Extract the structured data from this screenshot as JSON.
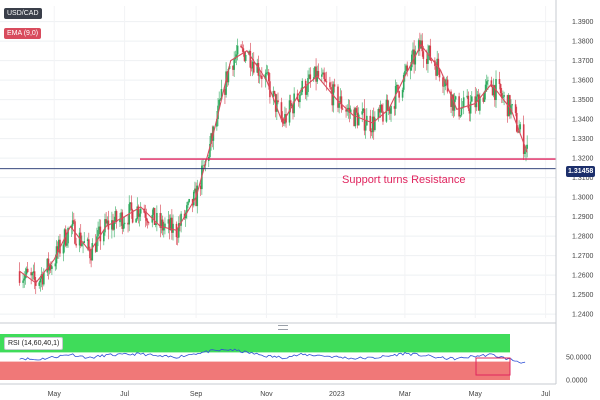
{
  "legend": {
    "symbol": "USD/CAD",
    "ema_label": "EMA (9,0)",
    "rsi_label": "RSI (14,60,40,1)"
  },
  "annotation": "Support turns Resistance",
  "colors": {
    "up": "#2eaa5e",
    "down": "#d63b4a",
    "ema": "#d84b5d",
    "support_line": "#e0245e",
    "price_line": "#1c2f6b",
    "rsi_line": "#2d4fd6",
    "rsi_top_zone": "#3fdc5a",
    "rsi_bottom_zone": "#f07878"
  },
  "chart_data": [
    {
      "type": "candlestick",
      "title": "USD/CAD",
      "y_ticks": [
        "1.3900",
        "1.3800",
        "1.3700",
        "1.3600",
        "1.3500",
        "1.3400",
        "1.3300",
        "1.3200",
        "1.3100",
        "1.3000",
        "1.2900",
        "1.2800",
        "1.2700",
        "1.2600",
        "1.2500",
        "1.2400"
      ],
      "x_ticks": [
        "May",
        "Jul",
        "Sep",
        "Nov",
        "2023",
        "Mar",
        "May",
        "Jul"
      ],
      "ylim": [
        1.238,
        1.398
      ],
      "current_price": "1.31458",
      "horizontal_level": 1.3195,
      "annotation": "Support turns Resistance",
      "series": [
        {
          "name": "EMA (9,0)",
          "points": [
            [
              "2022-04-01",
              1.262
            ],
            [
              "2022-04-15",
              1.256
            ],
            [
              "2022-05-01",
              1.268
            ],
            [
              "2022-05-15",
              1.285
            ],
            [
              "2022-06-01",
              1.272
            ],
            [
              "2022-06-15",
              1.285
            ],
            [
              "2022-07-01",
              1.29
            ],
            [
              "2022-07-15",
              1.295
            ],
            [
              "2022-08-01",
              1.285
            ],
            [
              "2022-08-15",
              1.283
            ],
            [
              "2022-09-01",
              1.3
            ],
            [
              "2022-09-15",
              1.33
            ],
            [
              "2022-10-01",
              1.37
            ],
            [
              "2022-10-15",
              1.375
            ],
            [
              "2022-11-01",
              1.36
            ],
            [
              "2022-11-15",
              1.338
            ],
            [
              "2022-12-01",
              1.355
            ],
            [
              "2022-12-15",
              1.362
            ],
            [
              "2023-01-01",
              1.35
            ],
            [
              "2023-01-15",
              1.342
            ],
            [
              "2023-02-01",
              1.338
            ],
            [
              "2023-02-15",
              1.345
            ],
            [
              "2023-03-01",
              1.362
            ],
            [
              "2023-03-15",
              1.378
            ],
            [
              "2023-04-01",
              1.365
            ],
            [
              "2023-04-15",
              1.345
            ],
            [
              "2023-05-01",
              1.348
            ],
            [
              "2023-05-15",
              1.358
            ],
            [
              "2023-06-01",
              1.345
            ],
            [
              "2023-06-15",
              1.323
            ]
          ]
        }
      ]
    },
    {
      "type": "line",
      "title": "RSI (14,60,40,1)",
      "y_ticks": [
        "50.0000",
        "0.0000"
      ],
      "ylim": [
        0,
        100
      ],
      "zones": [
        [
          60,
          100
        ],
        [
          0,
          40
        ]
      ],
      "series": [
        {
          "name": "RSI",
          "points": [
            [
              "2022-04-01",
              48
            ],
            [
              "2022-04-15",
              44
            ],
            [
              "2022-05-01",
              50
            ],
            [
              "2022-05-15",
              56
            ],
            [
              "2022-06-01",
              48
            ],
            [
              "2022-06-15",
              54
            ],
            [
              "2022-07-01",
              55
            ],
            [
              "2022-07-15",
              57
            ],
            [
              "2022-08-01",
              51
            ],
            [
              "2022-08-15",
              50
            ],
            [
              "2022-09-01",
              58
            ],
            [
              "2022-09-15",
              63
            ],
            [
              "2022-10-01",
              66
            ],
            [
              "2022-10-15",
              60
            ],
            [
              "2022-11-01",
              52
            ],
            [
              "2022-11-15",
              49
            ],
            [
              "2022-12-01",
              55
            ],
            [
              "2022-12-15",
              54
            ],
            [
              "2023-01-01",
              50
            ],
            [
              "2023-01-15",
              47
            ],
            [
              "2023-02-01",
              48
            ],
            [
              "2023-02-15",
              52
            ],
            [
              "2023-03-01",
              58
            ],
            [
              "2023-03-15",
              54
            ],
            [
              "2023-04-01",
              48
            ],
            [
              "2023-04-15",
              46
            ],
            [
              "2023-05-01",
              52
            ],
            [
              "2023-05-15",
              55
            ],
            [
              "2023-06-01",
              44
            ],
            [
              "2023-06-15",
              36
            ]
          ]
        }
      ]
    }
  ]
}
